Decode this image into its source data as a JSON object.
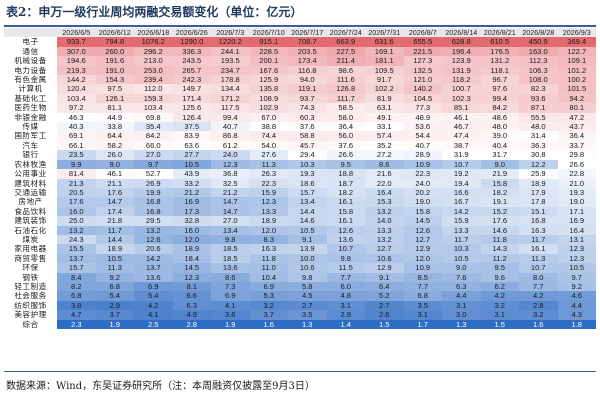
{
  "title": "表2：申万一级行业周均两融交易额变化（单位：亿元）",
  "header": [
    "",
    "2026/6/5",
    "2026/6/12",
    "2026/6/18",
    "2026/6/26",
    "2026/7/3",
    "2026/7/10",
    "2026/7/17",
    "2026/7/24",
    "2026/7/31",
    "2026/8/7",
    "2026/8/14",
    "2026/8/21",
    "2026/8/28",
    "2026/9/3"
  ],
  "rows": [
    {
      "industry": "电子",
      "values": [
        "933.7",
        "794.8",
        "1076.2",
        "1290.0",
        "1220.2",
        "915.1",
        "708.7",
        "663.9",
        "631.6",
        "655.5",
        "628.8",
        "610.5",
        "450.9",
        "369.4"
      ]
    },
    {
      "industry": "通信",
      "values": [
        "307.0",
        "260.0",
        "296.2",
        "336.3",
        "244.1",
        "228.5",
        "203.5",
        "227.5",
        "169.1",
        "221.5",
        "196.4",
        "176.5",
        "163.0",
        "122.7"
      ]
    },
    {
      "industry": "机械设备",
      "values": [
        "194.6",
        "191.6",
        "213.0",
        "243.5",
        "193.5",
        "200.1",
        "173.4",
        "211.4",
        "181.1",
        "127.3",
        "123.9",
        "131.2",
        "112.3",
        "109.1"
      ]
    },
    {
      "industry": "电力设备",
      "values": [
        "219.3",
        "191.0",
        "253.0",
        "265.7",
        "234.7",
        "167.6",
        "116.8",
        "98.6",
        "109.5",
        "132.5",
        "131.9",
        "118.1",
        "106.3",
        "101.2"
      ]
    },
    {
      "industry": "有色金属",
      "values": [
        "144.2",
        "154.3",
        "239.4",
        "242.3",
        "178.8",
        "125.9",
        "94.0",
        "111.6",
        "91.7",
        "121.0",
        "118.2",
        "96.7",
        "108.0",
        "100.2"
      ]
    },
    {
      "industry": "计算机",
      "values": [
        "120.4",
        "97.5",
        "112.0",
        "149.7",
        "134.4",
        "135.8",
        "119.1",
        "126.8",
        "102.2",
        "140.2",
        "100.7",
        "97.6",
        "82.3",
        "101.5"
      ]
    },
    {
      "industry": "基础化工",
      "values": [
        "103.4",
        "126.1",
        "159.3",
        "171.4",
        "171.2",
        "108.9",
        "93.7",
        "111.7",
        "81.9",
        "104.5",
        "102.3",
        "99.4",
        "93.6",
        "94.2"
      ]
    },
    {
      "industry": "医药生物",
      "values": [
        "97.2",
        "81.1",
        "103.4",
        "125.6",
        "117.5",
        "102.9",
        "74.3",
        "58.5",
        "63.1",
        "77.3",
        "85.1",
        "84.2",
        "87.1",
        "80.1"
      ]
    },
    {
      "industry": "非银金融",
      "values": [
        "46.3",
        "44.9",
        "69.8",
        "126.4",
        "99.4",
        "67.0",
        "60.3",
        "58.0",
        "49.1",
        "48.9",
        "46.1",
        "48.6",
        "55.5",
        "47.2"
      ]
    },
    {
      "industry": "传媒",
      "values": [
        "40.3",
        "33.8",
        "35.4",
        "37.5",
        "40.7",
        "38.8",
        "37.6",
        "36.4",
        "33.1",
        "53.6",
        "46.7",
        "48.0",
        "48.0",
        "43.7"
      ]
    },
    {
      "industry": "国防军工",
      "values": [
        "69.1",
        "64.4",
        "84.2",
        "83.9",
        "86.8",
        "74.4",
        "58.8",
        "56.0",
        "57.4",
        "54.4",
        "47.4",
        "39.0",
        "31.4",
        "36.4"
      ]
    },
    {
      "industry": "汽车",
      "values": [
        "66.1",
        "58.2",
        "66.0",
        "63.6",
        "61.2",
        "54.0",
        "45.7",
        "37.6",
        "35.2",
        "40.7",
        "38.7",
        "40.4",
        "36.3",
        "33.7"
      ]
    },
    {
      "industry": "银行",
      "values": [
        "23.5",
        "26.0",
        "27.0",
        "27.7",
        "24.0",
        "27.6",
        "29.4",
        "26.6",
        "27.2",
        "28.9",
        "31.9",
        "31.7",
        "30.8",
        "29.8"
      ]
    },
    {
      "industry": "农林牧渔",
      "values": [
        "9.9",
        "9.0",
        "9.7",
        "10.5",
        "12.3",
        "11.3",
        "10.3",
        "9.5",
        "8.6",
        "10.9",
        "10.7",
        "9.0",
        "12.2",
        "26.6"
      ]
    },
    {
      "industry": "公用事业",
      "values": [
        "81.4",
        "46.1",
        "52.7",
        "43.9",
        "36.8",
        "26.3",
        "19.3",
        "18.8",
        "21.6",
        "22.3",
        "19.2",
        "21.9",
        "25.9",
        "22.8"
      ]
    },
    {
      "industry": "建筑材料",
      "values": [
        "21.3",
        "21.1",
        "26.9",
        "33.2",
        "32.5",
        "22.3",
        "18.6",
        "18.7",
        "22.0",
        "24.0",
        "19.4",
        "15.8",
        "18.9",
        "21.0"
      ]
    },
    {
      "industry": "交通运输",
      "values": [
        "20.5",
        "17.6",
        "19.9",
        "21.2",
        "21.2",
        "15.9",
        "15.7",
        "18.2",
        "16.4",
        "20.2",
        "16.6",
        "18.2",
        "17.9",
        "19.3"
      ]
    },
    {
      "industry": "房地产",
      "values": [
        "17.6",
        "14.7",
        "16.8",
        "16.9",
        "14.7",
        "12.3",
        "13.4",
        "16.1",
        "15.3",
        "19.0",
        "16.7",
        "19.1",
        "17.8",
        "19.0"
      ]
    },
    {
      "industry": "食品饮料",
      "values": [
        "16.0",
        "17.4",
        "16.8",
        "17.3",
        "14.7",
        "13.3",
        "14.4",
        "15.8",
        "13.2",
        "15.8",
        "14.2",
        "15.2",
        "15.1",
        "17.1"
      ]
    },
    {
      "industry": "建筑装饰",
      "values": [
        "25.0",
        "21.8",
        "29.5",
        "32.8",
        "27.0",
        "18.9",
        "14.6",
        "16.1",
        "14.0",
        "14.5",
        "15.9",
        "17.6",
        "16.8",
        "16.9"
      ]
    },
    {
      "industry": "石油石化",
      "values": [
        "13.2",
        "11.7",
        "13.2",
        "16.0",
        "13.4",
        "12.0",
        "10.5",
        "12.6",
        "13.3",
        "12.6",
        "13.3",
        "14.6",
        "16.3",
        "16.4"
      ]
    },
    {
      "industry": "煤炭",
      "values": [
        "24.3",
        "14.4",
        "12.6",
        "12.0",
        "9.8",
        "8.3",
        "9.1",
        "13.6",
        "13.2",
        "12.7",
        "11.7",
        "11.8",
        "11.7",
        "13.1"
      ]
    },
    {
      "industry": "家用电器",
      "values": [
        "15.5",
        "18.9",
        "20.6",
        "18.9",
        "18.5",
        "16.3",
        "13.9",
        "10.7",
        "12.7",
        "12.9",
        "10.3",
        "14.3",
        "16.1",
        "12.3"
      ]
    },
    {
      "industry": "商贸零售",
      "values": [
        "13.7",
        "10.5",
        "14.2",
        "18.4",
        "18.5",
        "11.8",
        "10.0",
        "9.8",
        "10.6",
        "12.0",
        "10.5",
        "11.2",
        "11.3",
        "12.3"
      ]
    },
    {
      "industry": "环保",
      "values": [
        "15.7",
        "11.3",
        "13.7",
        "14.5",
        "13.6",
        "11.0",
        "10.6",
        "11.5",
        "12.9",
        "10.9",
        "9.0",
        "9.5",
        "10.7",
        "10.5"
      ]
    },
    {
      "industry": "钢铁",
      "values": [
        "8.4",
        "9.2",
        "13.6",
        "12.3",
        "8.6",
        "10.4",
        "9.8",
        "7.7",
        "9.1",
        "8.5",
        "7.6",
        "9.6",
        "8.0",
        "9.7"
      ]
    },
    {
      "industry": "轻工制造",
      "values": [
        "8.2",
        "6.8",
        "6.9",
        "8.1",
        "7.3",
        "6.9",
        "5.8",
        "6.0",
        "6.4",
        "7.7",
        "6.3",
        "6.2",
        "7.7",
        "9.2"
      ]
    },
    {
      "industry": "社会服务",
      "values": [
        "6.8",
        "5.4",
        "5.4",
        "6.6",
        "6.9",
        "5.3",
        "4.5",
        "4.8",
        "5.2",
        "6.8",
        "4.4",
        "4.2",
        "4.2",
        "4.6"
      ]
    },
    {
      "industry": "纺织服饰",
      "values": [
        "3.8",
        "2.9",
        "4.2",
        "6.3",
        "4.1",
        "3.2",
        "2.7",
        "3.1",
        "2.7",
        "3.5",
        "3.1",
        "3.2",
        "2.8",
        "4.4"
      ]
    },
    {
      "industry": "美容护理",
      "values": [
        "4.7",
        "3.7",
        "4.1",
        "4.9",
        "3.6",
        "3.7",
        "3.5",
        "2.9",
        "2.6",
        "3.1",
        "3.0",
        "3.1",
        "3.2",
        "4.3"
      ]
    },
    {
      "industry": "综合",
      "values": [
        "2.3",
        "1.9",
        "2.5",
        "2.8",
        "1.9",
        "1.6",
        "1.3",
        "1.4",
        "1.5",
        "1.7",
        "1.3",
        "1.5",
        "1.6",
        "1.8"
      ]
    }
  ],
  "source": "数据来源：Wind，东吴证券研究所（注：本周融资仅披露至9月3日）",
  "colors": {
    "header_bg": "#e8e8e8",
    "high": "#e26a70",
    "mid": "#ffffff",
    "low": "#2f6cc4",
    "rule": "#3a5f9a"
  }
}
